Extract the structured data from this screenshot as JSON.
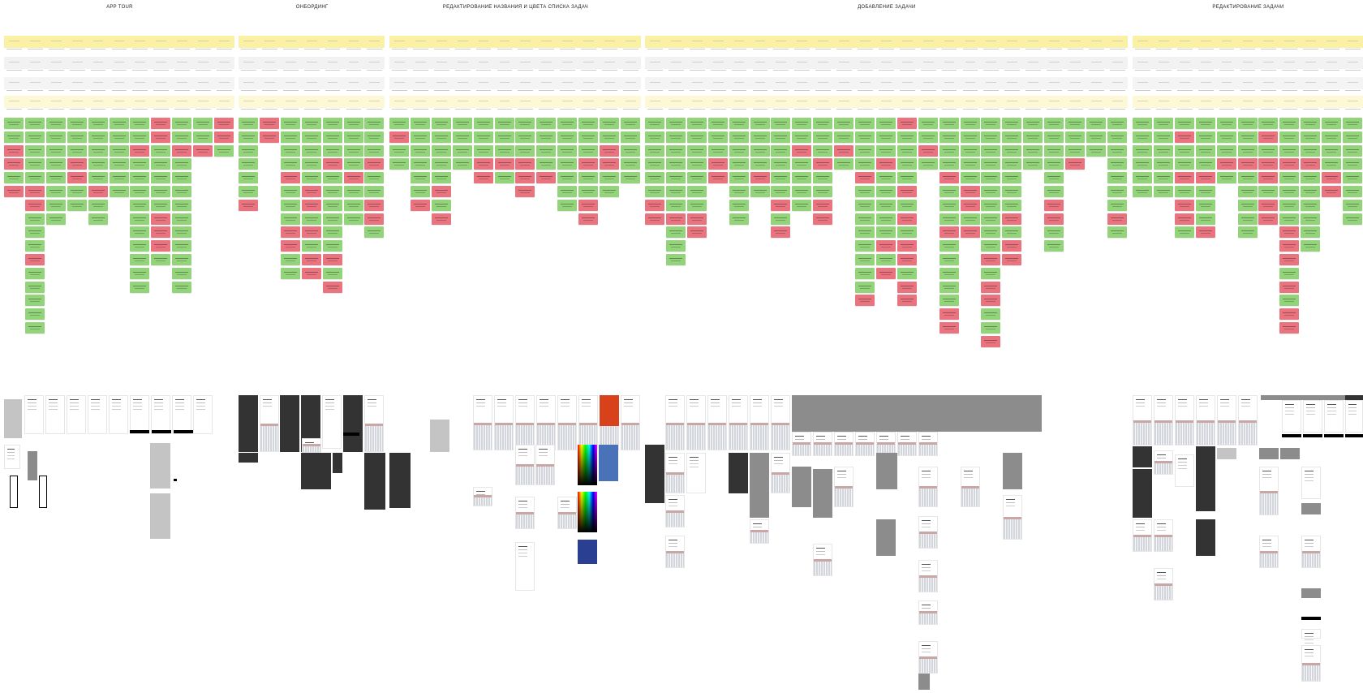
{
  "board": {
    "colors": {
      "stage": "#fbf1a4",
      "row_gray": "#f2f2f2",
      "row_pale": "#fdf8d6",
      "positive": "#93d47a",
      "negative": "#e9737f"
    },
    "sections": [
      {
        "title": "APP TOUR",
        "columns": [
          "ggrrgr",
          "gggggrrgggrggggg",
          "gggggggg",
          "gggrrgg",
          "gggggrgg",
          "gggggg",
          "ggrgggggggggg",
          "rrgggggrrrg",
          "ggrgggggggggg",
          "ggr",
          "rrg"
        ]
      },
      {
        "title": "ОНБОРДИНГ",
        "columns": [
          "ggggggr",
          "rr",
          "ggggrgggrrgg",
          "gggggrrgrgrr",
          "gggrggggggrgr",
          "ggggrggg",
          "gggrggrrg"
        ]
      },
      {
        "title": "РЕДАКТИРОВАНИЕ НАЗВАНИЯ И ЦВЕТА СПИСКА ЗАДАЧ",
        "columns": [
          "grgg",
          "ggggggr",
          "gggggrgr",
          "gggg",
          "gggrr",
          "gggrg",
          "gggrrr",
          "ggggr",
          "ggggggg",
          "gggrggrr",
          "ggrrgg",
          "ggggg"
        ]
      },
      {
        "title": "ДОБАВЛЕНИЕ ЗАДАЧИ",
        "columns": [
          "ggggggrr",
          "gggggggrggg",
          "gggggggrr",
          "gggrr",
          "gggggggg",
          "ggggrg",
          "ggggggrgr",
          "ggrgggg",
          "gggrggrr",
          "ggrg",
          "ggggrggggggggr",
          "gggrgggggrgr",
          "rggggrgrgrrgrr",
          "ggrg",
          "ggggrgggrgggggrr",
          "gggggrrgr",
          "ggggggggggrgrrggr",
          "gggggggrgrr",
          "gggg",
          "ggggggrrgg",
          "gggr",
          "ggg",
          "gggggggrg"
        ]
      },
      {
        "title": "РЕДАКТИРОВАНИЕ ЗАДАЧИ",
        "columns": [
          "gggggg",
          "gggggg",
          "grggrgrrg",
          "ggggrgggr",
          "gggrg",
          "gggrggggg",
          "grgrrgrr",
          "gggrggggrrrgrgrr",
          "gggrgggggg",
          "ggggrr",
          "gggggggg"
        ]
      }
    ]
  }
}
